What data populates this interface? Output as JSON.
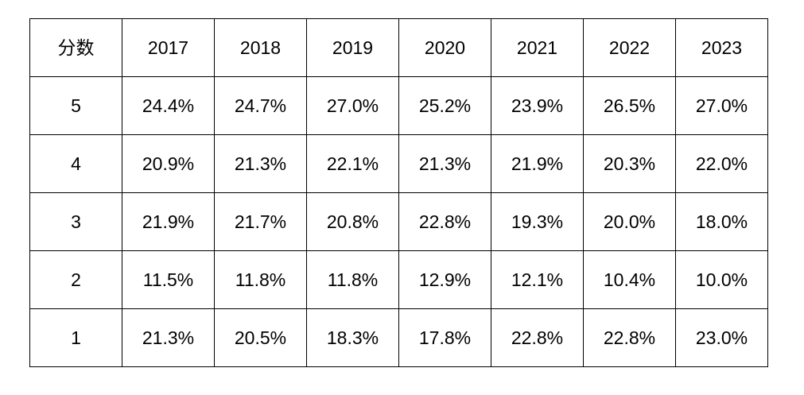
{
  "table": {
    "header": [
      "分数",
      "2017",
      "2018",
      "2019",
      "2020",
      "2021",
      "2022",
      "2023"
    ],
    "rows": [
      [
        "5",
        "24.4%",
        "24.7%",
        "27.0%",
        "25.2%",
        "23.9%",
        "26.5%",
        "27.0%"
      ],
      [
        "4",
        "20.9%",
        "21.3%",
        "22.1%",
        "21.3%",
        "21.9%",
        "20.3%",
        "22.0%"
      ],
      [
        "3",
        "21.9%",
        "21.7%",
        "20.8%",
        "22.8%",
        "19.3%",
        "20.0%",
        "18.0%"
      ],
      [
        "2",
        "11.5%",
        "11.8%",
        "11.8%",
        "12.9%",
        "12.1%",
        "10.4%",
        "10.0%"
      ],
      [
        "1",
        "21.3%",
        "20.5%",
        "18.3%",
        "17.8%",
        "22.8%",
        "22.8%",
        "23.0%"
      ]
    ]
  }
}
